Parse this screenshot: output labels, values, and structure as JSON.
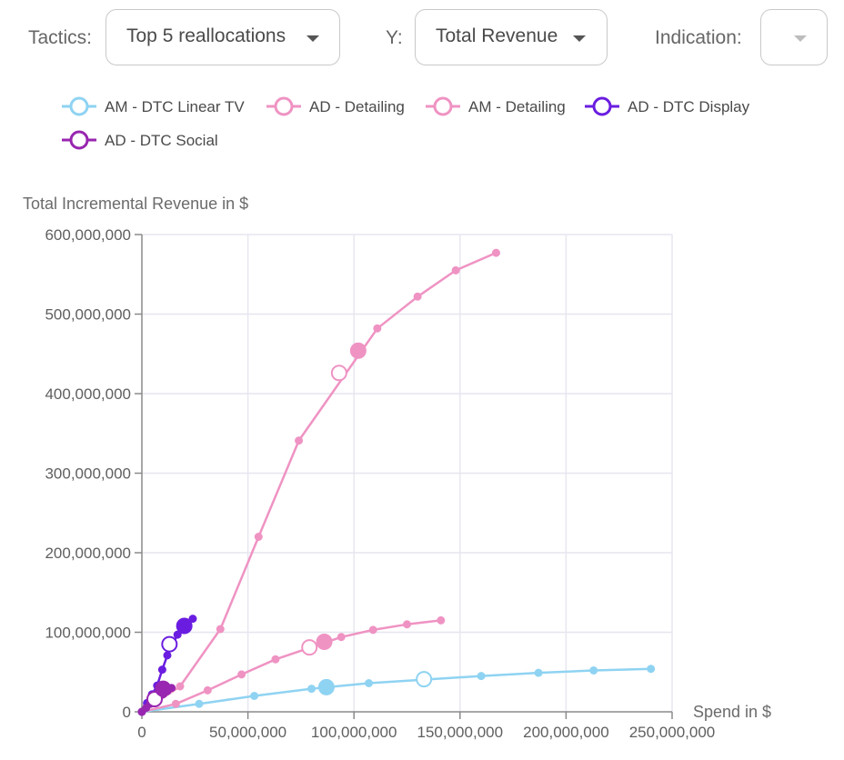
{
  "controls": {
    "tactics_label": "Tactics:",
    "tactics_value": "Top 5 reallocations",
    "y_label": "Y:",
    "y_value": "Total Revenue",
    "indication_label": "Indication:",
    "indication_value": ""
  },
  "chart_data": {
    "type": "line",
    "title": "",
    "xlabel": "Spend in $",
    "ylabel": "Total Incremental Revenue in $",
    "xlim": [
      0,
      250000000
    ],
    "ylim": [
      0,
      600000000
    ],
    "x_ticks": [
      0,
      50000000,
      100000000,
      150000000,
      200000000,
      250000000
    ],
    "x_tick_labels": [
      "0",
      "50,000,000",
      "100,000,000",
      "150,000,000",
      "200,000,000",
      "250,000,000"
    ],
    "y_ticks": [
      0,
      100000000,
      200000000,
      300000000,
      400000000,
      500000000,
      600000000
    ],
    "y_tick_labels": [
      "0",
      "100,000,000",
      "200,000,000",
      "300,000,000",
      "400,000,000",
      "500,000,000",
      "600,000,000"
    ],
    "grid": true,
    "legend_position": "top",
    "series": [
      {
        "name": "AM - DTC Linear TV",
        "color": "#8fd3f2",
        "points": [
          [
            0,
            0
          ],
          [
            27000000,
            10000000
          ],
          [
            53000000,
            20000000
          ],
          [
            80000000,
            29000000
          ],
          [
            107000000,
            36000000
          ],
          [
            160000000,
            45000000
          ],
          [
            187000000,
            49000000
          ],
          [
            213000000,
            52000000
          ],
          [
            240000000,
            54000000
          ]
        ],
        "current": [
          133000000,
          41000000
        ],
        "optimized": [
          87000000,
          31000000
        ]
      },
      {
        "name": "AD - Detailing",
        "color": "#ef93c3",
        "points": [
          [
            0,
            0
          ],
          [
            18000000,
            32000000
          ],
          [
            37000000,
            104000000
          ],
          [
            55000000,
            220000000
          ],
          [
            74000000,
            341000000
          ],
          [
            111000000,
            482000000
          ],
          [
            130000000,
            522000000
          ],
          [
            148000000,
            555000000
          ],
          [
            167000000,
            577000000
          ]
        ],
        "current": [
          93000000,
          426000000
        ],
        "optimized": [
          102000000,
          454000000
        ]
      },
      {
        "name": "AM - Detailing",
        "color": "#ef93c3",
        "points": [
          [
            0,
            0
          ],
          [
            16000000,
            10000000
          ],
          [
            31000000,
            27000000
          ],
          [
            47000000,
            47000000
          ],
          [
            63000000,
            66000000
          ],
          [
            94000000,
            94000000
          ],
          [
            109000000,
            103000000
          ],
          [
            125000000,
            110000000
          ],
          [
            141000000,
            115000000
          ]
        ],
        "current": [
          79000000,
          81000000
        ],
        "optimized": [
          86000000,
          88000000
        ]
      },
      {
        "name": "AD - DTC Display",
        "color": "#6a1de0",
        "points": [
          [
            0,
            0
          ],
          [
            2400000,
            11000000
          ],
          [
            4800000,
            22000000
          ],
          [
            7200000,
            33000000
          ],
          [
            9600000,
            53000000
          ],
          [
            12000000,
            71000000
          ],
          [
            16800000,
            97000000
          ],
          [
            24000000,
            117000000
          ]
        ],
        "current": [
          13000000,
          85000000
        ],
        "optimized": [
          20000000,
          108000000
        ]
      },
      {
        "name": "AD - DTC Social",
        "color": "#9826b0",
        "points": [
          [
            0,
            0
          ],
          [
            2000000,
            5000000
          ],
          [
            4000000,
            10000000
          ],
          [
            6000000,
            14000000
          ],
          [
            8000000,
            18000000
          ],
          [
            10000000,
            22000000
          ],
          [
            12000000,
            26000000
          ],
          [
            14000000,
            30000000
          ]
        ],
        "current": [
          6000000,
          16000000
        ],
        "optimized": [
          10000000,
          29000000
        ]
      }
    ]
  }
}
